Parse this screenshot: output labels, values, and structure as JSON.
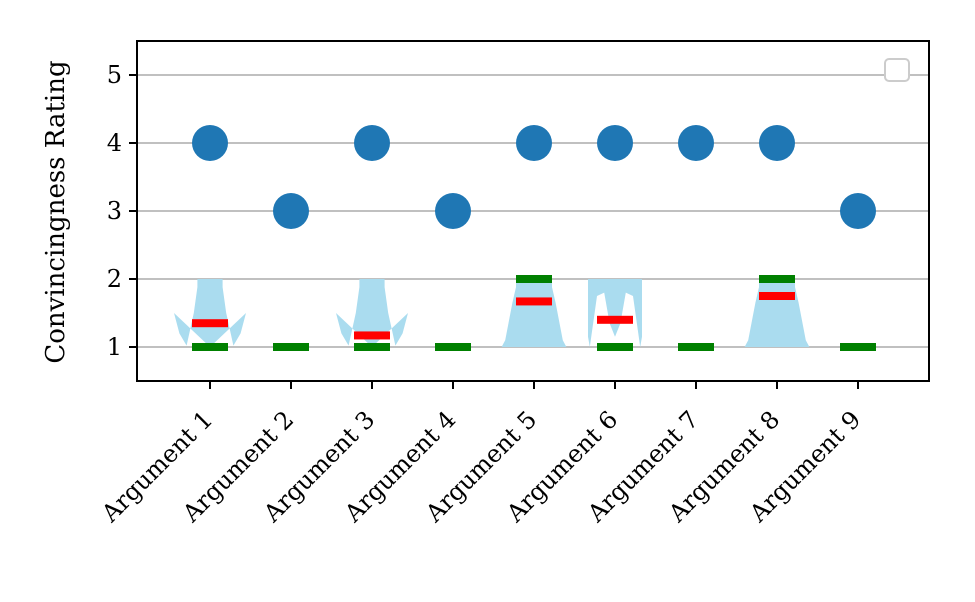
{
  "chart_data": {
    "type": "violin",
    "ylabel": "Convincingness Rating",
    "xlabel": "",
    "ylim": [
      0.5,
      5.5
    ],
    "yticks": [
      "1",
      "2",
      "3",
      "4",
      "5"
    ],
    "categories": [
      "Argument 1",
      "Argument 2",
      "Argument 3",
      "Argument 4",
      "Argument 5",
      "Argument 6",
      "Argument 7",
      "Argument 8",
      "Argument 9"
    ],
    "grid": "y",
    "legend": "top-right (empty)",
    "series": [
      {
        "marker": "circle",
        "values": [
          4,
          3,
          4,
          3,
          4,
          4,
          4,
          4,
          3
        ]
      },
      {
        "marker": "red bar (mean)",
        "values": [
          1.35,
          1.0,
          1.17,
          1.0,
          1.67,
          1.4,
          1.0,
          1.75,
          1.0
        ]
      },
      {
        "marker": "green bar (median)",
        "values": [
          1,
          1,
          1,
          1,
          2,
          1,
          1,
          2,
          1
        ]
      }
    ],
    "violins": [
      {
        "category": "Argument 1",
        "shape": "wide-bottom"
      },
      {
        "category": "Argument 2",
        "shape": "none"
      },
      {
        "category": "Argument 3",
        "shape": "wide-bottom"
      },
      {
        "category": "Argument 4",
        "shape": "none"
      },
      {
        "category": "Argument 5",
        "shape": "wide-top"
      },
      {
        "category": "Argument 6",
        "shape": "wide-both"
      },
      {
        "category": "Argument 7",
        "shape": "none"
      },
      {
        "category": "Argument 8",
        "shape": "wide-top"
      },
      {
        "category": "Argument 9",
        "shape": "none"
      }
    ],
    "colors": {
      "dot": "#1f77b4",
      "violin": "#aadcef",
      "mean": "#ff0000",
      "median": "#008000",
      "grid": "#c0c0c0"
    }
  }
}
